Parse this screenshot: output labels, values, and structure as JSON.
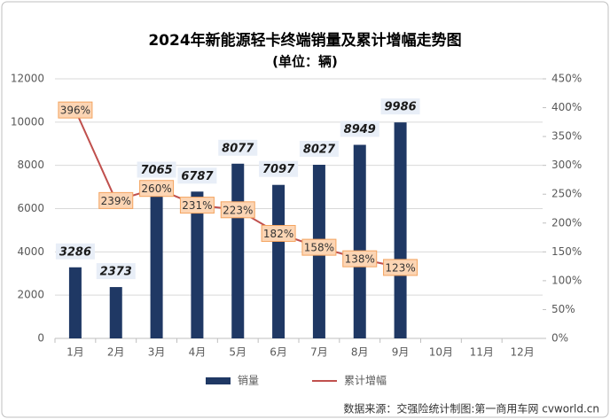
{
  "chart_data": {
    "type": "bar-line",
    "title": "2024年新能源轻卡终端销量及累计增幅走势图",
    "subtitle": "(单位：辆)",
    "source": "数据来源：交强险统计制图:第一商用车网 cvworld.cn",
    "categories": [
      "1月",
      "2月",
      "3月",
      "4月",
      "5月",
      "6月",
      "7月",
      "8月",
      "9月",
      "10月",
      "11月",
      "12月"
    ],
    "series": [
      {
        "name": "销量",
        "type": "bar",
        "color": "#1f3864",
        "values": [
          3286,
          2373,
          7065,
          6787,
          8077,
          7097,
          8027,
          8949,
          9986,
          null,
          null,
          null
        ]
      },
      {
        "name": "累计增幅",
        "type": "line",
        "axis": "y2",
        "color": "#c0504d",
        "values": [
          396,
          239,
          260,
          231,
          223,
          182,
          158,
          138,
          123,
          null,
          null,
          null
        ],
        "value_labels": [
          "396%",
          "239%",
          "260%",
          "231%",
          "223%",
          "182%",
          "158%",
          "138%",
          "123%",
          null,
          null,
          null
        ]
      }
    ],
    "ylim": [
      0,
      12000
    ],
    "yticks": [
      0,
      2000,
      4000,
      6000,
      8000,
      10000,
      12000
    ],
    "y2lim": [
      0,
      450
    ],
    "y2ticks": [
      {
        "value": 0,
        "label": "0%"
      },
      {
        "value": 50,
        "label": "50%"
      },
      {
        "value": 100,
        "label": "100%"
      },
      {
        "value": 150,
        "label": "150%"
      },
      {
        "value": 200,
        "label": "200%"
      },
      {
        "value": 250,
        "label": "250%"
      },
      {
        "value": 300,
        "label": "300%"
      },
      {
        "value": 350,
        "label": "350%"
      },
      {
        "value": 400,
        "label": "400%"
      },
      {
        "value": 450,
        "label": "450%"
      }
    ],
    "grid": true
  }
}
